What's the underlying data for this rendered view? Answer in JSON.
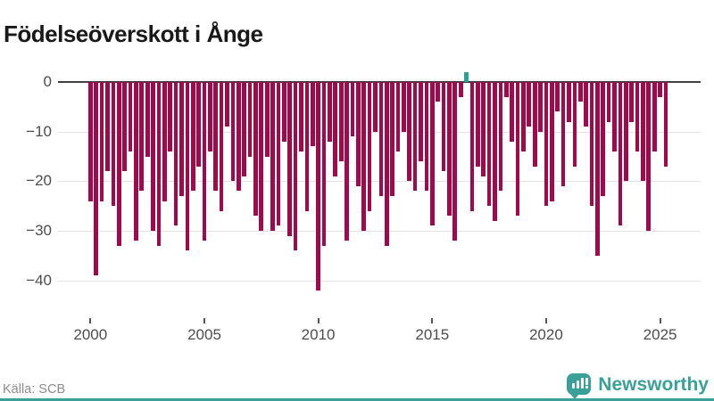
{
  "title": "Födelseöverskott i Ånge",
  "source": "Källa: SCB",
  "brand": {
    "name": "Newsworthy",
    "icon": "newsworthy-pin-barchart-icon"
  },
  "colors": {
    "bar_negative": "#a00a4c",
    "bar_positive": "#2aa193",
    "brand_teal": "#3aa098",
    "axis": "#404040",
    "gridline": "#e3e3e3",
    "tick_text": "#4d4d4d",
    "title_text": "#191919",
    "source_text": "#8c8c8c",
    "background": "#ffffff"
  },
  "chart_data": {
    "type": "bar",
    "title": "Födelseöverskott i Ånge",
    "xlabel": "",
    "ylabel": "",
    "grid": true,
    "ylim": [
      -44,
      4
    ],
    "yticks": [
      {
        "label": "0",
        "value": 0
      },
      {
        "label": "−10",
        "value": -10
      },
      {
        "label": "−20",
        "value": -20
      },
      {
        "label": "−30",
        "value": -30
      },
      {
        "label": "−40",
        "value": -40
      }
    ],
    "xticks": [
      {
        "label": "2000",
        "index": 0
      },
      {
        "label": "2005",
        "index": 20
      },
      {
        "label": "2010",
        "index": 40
      },
      {
        "label": "2015",
        "index": 60
      },
      {
        "label": "2020",
        "index": 80
      },
      {
        "label": "2025",
        "index": 100
      }
    ],
    "x": [
      "2000-Q1",
      "2000-Q2",
      "2000-Q3",
      "2000-Q4",
      "2001-Q1",
      "2001-Q2",
      "2001-Q3",
      "2001-Q4",
      "2002-Q1",
      "2002-Q2",
      "2002-Q3",
      "2002-Q4",
      "2003-Q1",
      "2003-Q2",
      "2003-Q3",
      "2003-Q4",
      "2004-Q1",
      "2004-Q2",
      "2004-Q3",
      "2004-Q4",
      "2005-Q1",
      "2005-Q2",
      "2005-Q3",
      "2005-Q4",
      "2006-Q1",
      "2006-Q2",
      "2006-Q3",
      "2006-Q4",
      "2007-Q1",
      "2007-Q2",
      "2007-Q3",
      "2007-Q4",
      "2008-Q1",
      "2008-Q2",
      "2008-Q3",
      "2008-Q4",
      "2009-Q1",
      "2009-Q2",
      "2009-Q3",
      "2009-Q4",
      "2010-Q1",
      "2010-Q2",
      "2010-Q3",
      "2010-Q4",
      "2011-Q1",
      "2011-Q2",
      "2011-Q3",
      "2011-Q4",
      "2012-Q1",
      "2012-Q2",
      "2012-Q3",
      "2012-Q4",
      "2013-Q1",
      "2013-Q2",
      "2013-Q3",
      "2013-Q4",
      "2014-Q1",
      "2014-Q2",
      "2014-Q3",
      "2014-Q4",
      "2015-Q1",
      "2015-Q2",
      "2015-Q3",
      "2015-Q4",
      "2016-Q1",
      "2016-Q2",
      "2016-Q3",
      "2016-Q4",
      "2017-Q1",
      "2017-Q2",
      "2017-Q3",
      "2017-Q4",
      "2018-Q1",
      "2018-Q2",
      "2018-Q3",
      "2018-Q4",
      "2019-Q1",
      "2019-Q2",
      "2019-Q3",
      "2019-Q4",
      "2020-Q1",
      "2020-Q2",
      "2020-Q3",
      "2020-Q4",
      "2021-Q1",
      "2021-Q2",
      "2021-Q3",
      "2021-Q4",
      "2022-Q1",
      "2022-Q2",
      "2022-Q3",
      "2022-Q4",
      "2023-Q1",
      "2023-Q2",
      "2023-Q3",
      "2023-Q4",
      "2024-Q1",
      "2024-Q2",
      "2024-Q3",
      "2024-Q4",
      "2025-Q1",
      "2025-Q2"
    ],
    "values": [
      -24,
      -39,
      -24,
      -18,
      -25,
      -33,
      -18,
      -14,
      -32,
      -22,
      -15,
      -30,
      -33,
      -24,
      -14,
      -29,
      -23,
      -34,
      -22,
      -17,
      -32,
      -14,
      -22,
      -26,
      -9,
      -20,
      -22,
      -19,
      -15,
      -27,
      -30,
      -15,
      -30,
      -29,
      -12,
      -31,
      -34,
      -14,
      -26,
      -13,
      -42,
      -33,
      -12,
      -19,
      -16,
      -32,
      -11,
      -21,
      -30,
      -26,
      -10,
      -23,
      -33,
      -23,
      -14,
      -10,
      -20,
      -22,
      -16,
      -22,
      -29,
      -4,
      -18,
      -27,
      -32,
      -3,
      2,
      -26,
      -17,
      -19,
      -25,
      -28,
      -22,
      -3,
      -12,
      -27,
      -14,
      -9,
      -17,
      -10,
      -25,
      -24,
      -6,
      -21,
      -8,
      -17,
      -4,
      -9,
      -25,
      -35,
      -23,
      -8,
      -14,
      -29,
      -20,
      -8,
      -14,
      -20,
      -30,
      -14,
      -3,
      -17
    ]
  }
}
